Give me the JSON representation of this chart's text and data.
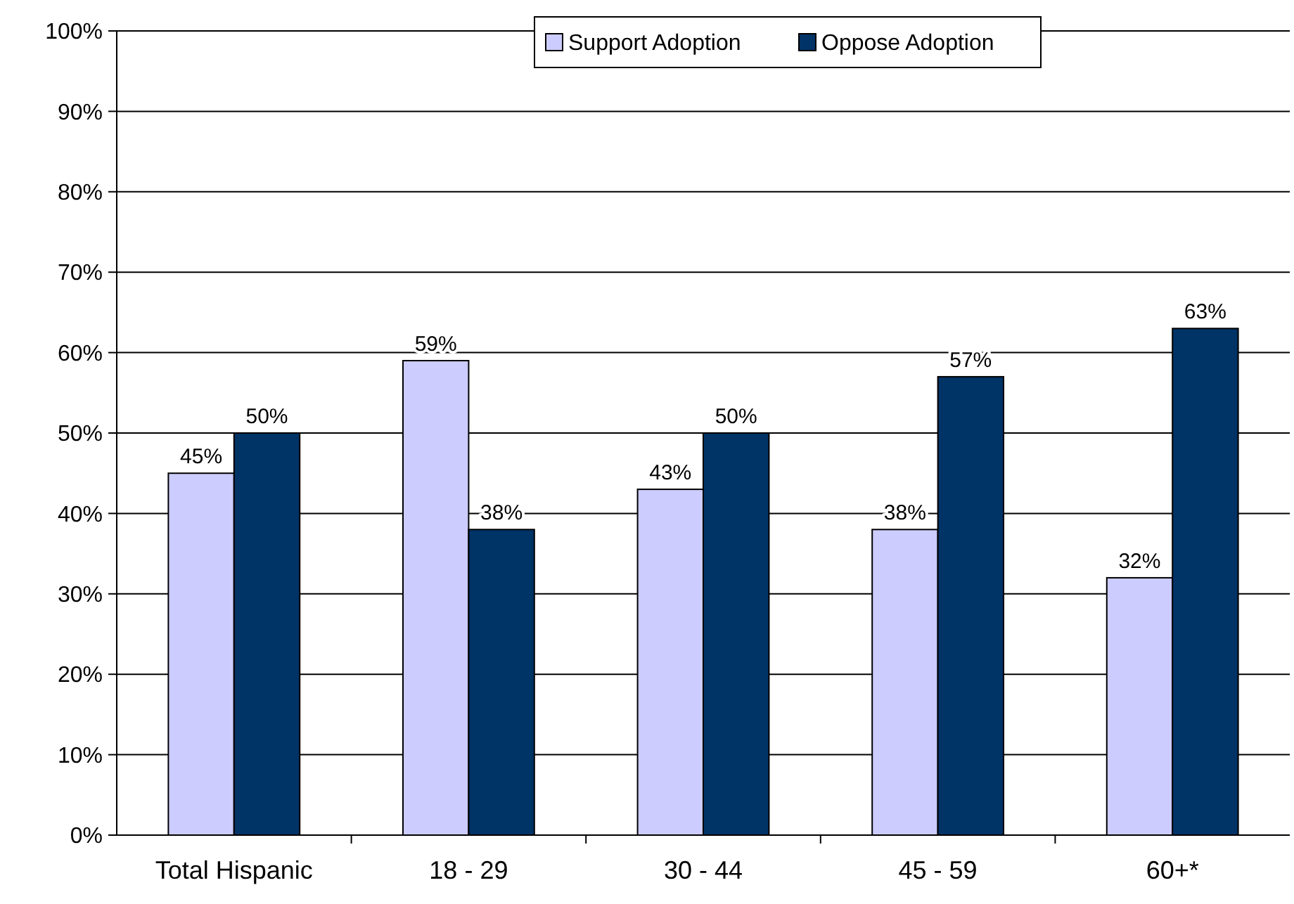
{
  "chart_data": {
    "type": "bar",
    "categories": [
      "Total Hispanic",
      "18 - 29",
      "30 - 44",
      "45 - 59",
      "60+*"
    ],
    "series": [
      {
        "name": "Support Adoption",
        "color": "#ccccff",
        "values": [
          45,
          59,
          43,
          38,
          32
        ],
        "value_labels": [
          "45%",
          "59%",
          "43%",
          "38%",
          "32%"
        ]
      },
      {
        "name": "Oppose Adoption",
        "color": "#003366",
        "values": [
          50,
          38,
          50,
          57,
          63
        ],
        "value_labels": [
          "50%",
          "38%",
          "50%",
          "57%",
          "63%"
        ]
      }
    ],
    "ylim": [
      0,
      100
    ],
    "yticks": [
      {
        "value": 0,
        "label": "0%"
      },
      {
        "value": 10,
        "label": "10%"
      },
      {
        "value": 20,
        "label": "20%"
      },
      {
        "value": 30,
        "label": "30%"
      },
      {
        "value": 40,
        "label": "40%"
      },
      {
        "value": 50,
        "label": "50%"
      },
      {
        "value": 60,
        "label": "60%"
      },
      {
        "value": 70,
        "label": "70%"
      },
      {
        "value": 80,
        "label": "80%"
      },
      {
        "value": 90,
        "label": "90%"
      },
      {
        "value": 100,
        "label": "100%"
      }
    ],
    "grid": "y",
    "legend": "top"
  }
}
